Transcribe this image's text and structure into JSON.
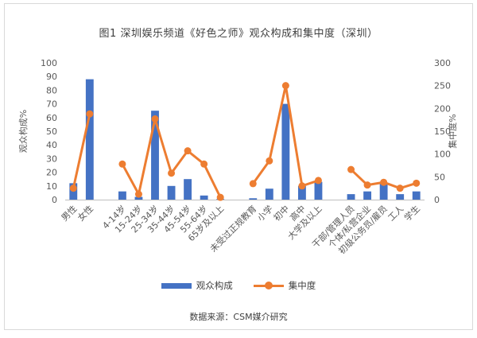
{
  "chart_data": {
    "type": "bar+line",
    "title": "图1  深圳娱乐频道《好色之师》观众构成和集中度（深圳）",
    "categories": [
      "男性",
      "女性",
      "",
      "4-14岁",
      "15-24岁",
      "25-34岁",
      "35-44岁",
      "45-54岁",
      "55-64岁",
      "65岁及以上",
      "",
      "未受过正规教育",
      "小学",
      "初中",
      "高中",
      "大学及以上",
      "",
      "干部/管理人员",
      "个体/私营企业",
      "初级公务员/雇员",
      "工人",
      "学生"
    ],
    "series": [
      {
        "name": "观众构成",
        "type": "bar",
        "axis": "left",
        "color": "#4472c4",
        "values": [
          12,
          88,
          null,
          6,
          2,
          65,
          10,
          15,
          3,
          0.5,
          null,
          1,
          8,
          70,
          10,
          13,
          null,
          4,
          6,
          12,
          4,
          6
        ]
      },
      {
        "name": "集中度",
        "type": "line",
        "axis": "right",
        "color": "#ed7d31",
        "values": [
          25,
          188,
          null,
          78,
          12,
          177,
          58,
          107,
          78,
          5,
          null,
          35,
          85,
          250,
          30,
          42,
          null,
          66,
          32,
          38,
          25,
          36
        ]
      }
    ],
    "ylabel": "观众构成%",
    "y2label": "集中度%",
    "ylim": [
      0,
      100
    ],
    "y2lim": [
      0,
      300
    ],
    "yticks": [
      0,
      10,
      20,
      30,
      40,
      50,
      60,
      70,
      80,
      90,
      100
    ],
    "y2ticks": [
      0,
      50,
      100,
      150,
      200,
      250,
      300
    ],
    "grid": false,
    "legend_position": "bottom",
    "source": "数据来源：CSM媒介研究"
  }
}
